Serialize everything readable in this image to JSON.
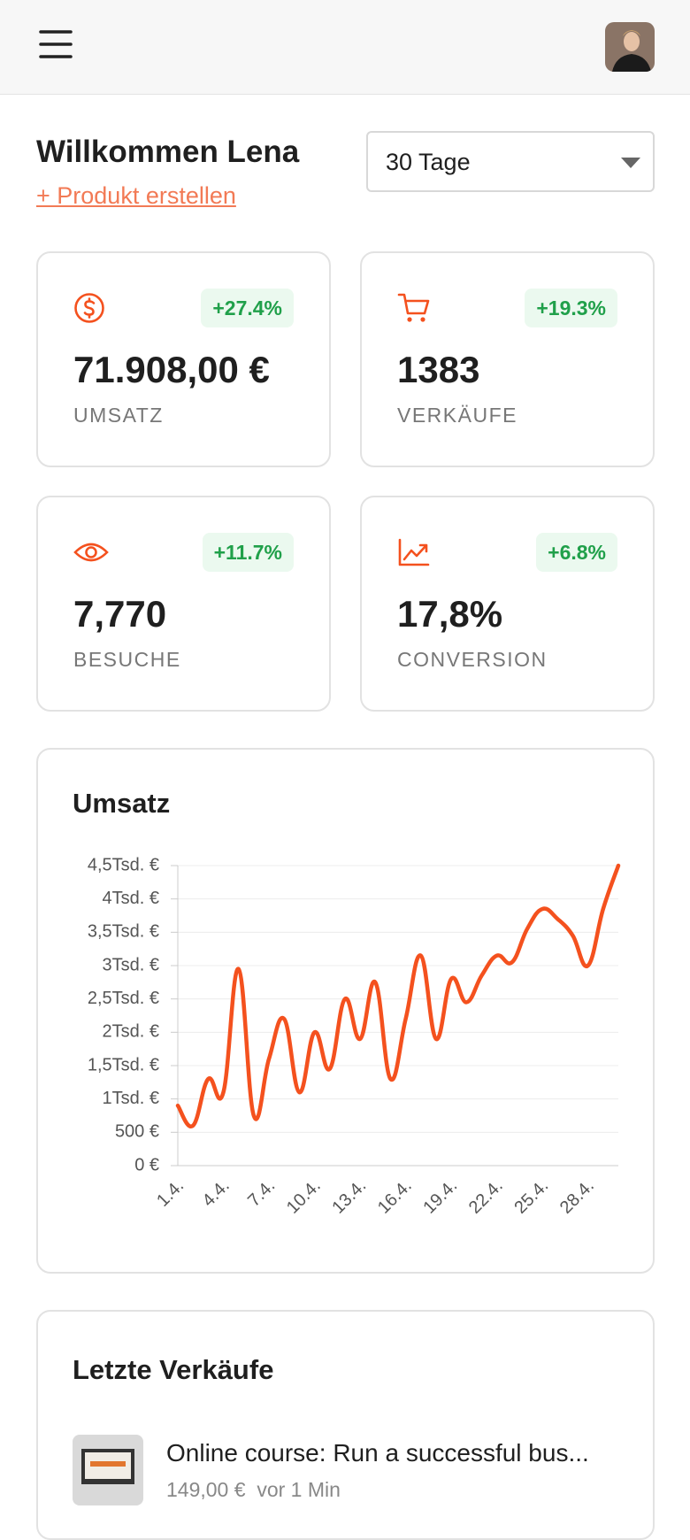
{
  "welcome": {
    "title": "Willkommen Lena",
    "create_link": "+ Produkt erstellen"
  },
  "period_select": "30 Tage",
  "stats": [
    {
      "change": "+27.4%",
      "value": "71.908,00 €",
      "label": "UMSATZ"
    },
    {
      "change": "+19.3%",
      "value": "1383",
      "label": "VERKÄUFE"
    },
    {
      "change": "+11.7%",
      "value": "7,770",
      "label": "BESUCHE"
    },
    {
      "change": "+6.8%",
      "value": "17,8%",
      "label": "CONVERSION"
    }
  ],
  "chart_data": {
    "type": "line",
    "title": "Umsatz",
    "categories": [
      "1.4.",
      null,
      null,
      "4.4.",
      null,
      null,
      "7.4.",
      null,
      null,
      "10.4.",
      null,
      null,
      "13.4.",
      null,
      null,
      "16.4.",
      null,
      null,
      "19.4.",
      null,
      null,
      "22.4.",
      null,
      null,
      "25.4.",
      null,
      null,
      "28.4.",
      null,
      null
    ],
    "series": [
      {
        "name": "Umsatz",
        "color": "#f4511e",
        "values": [
          900,
          600,
          1300,
          1100,
          2950,
          750,
          1600,
          2200,
          1100,
          2000,
          1450,
          2500,
          1900,
          2750,
          1300,
          2200,
          3150,
          1900,
          2800,
          2450,
          2850,
          3150,
          3050,
          3550,
          3850,
          3700,
          3450,
          3000,
          3850,
          4500
        ]
      }
    ],
    "ylim": [
      0,
      4500
    ],
    "yticks": [
      {
        "value": 0,
        "label": "0 €"
      },
      {
        "value": 500,
        "label": "500 €"
      },
      {
        "value": 1000,
        "label": "1Tsd. €"
      },
      {
        "value": 1500,
        "label": "1,5Tsd. €"
      },
      {
        "value": 2000,
        "label": "2Tsd. €"
      },
      {
        "value": 2500,
        "label": "2,5Tsd. €"
      },
      {
        "value": 3000,
        "label": "3Tsd. €"
      },
      {
        "value": 3500,
        "label": "3,5Tsd. €"
      },
      {
        "value": 4000,
        "label": "4Tsd. €"
      },
      {
        "value": 4500,
        "label": "4,5Tsd. €"
      }
    ],
    "grid": true
  },
  "recent_sales": {
    "title": "Letzte Verkäufe",
    "items": [
      {
        "name": "Online course: Run a successful bus...",
        "price": "149,00 €",
        "time": "vor 1 Min"
      }
    ]
  }
}
